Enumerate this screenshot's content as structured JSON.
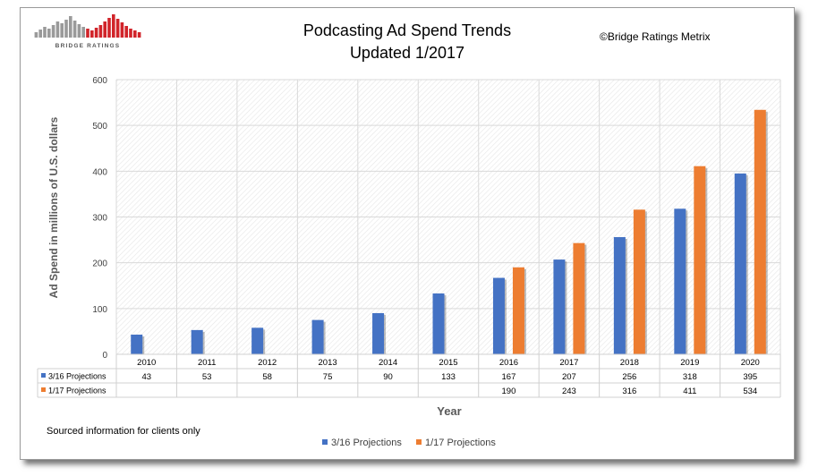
{
  "logo": {
    "text": "BRIDGE RATINGS"
  },
  "header": {
    "title_line1": "Podcasting Ad Spend Trends",
    "title_line2": "Updated 1/2017",
    "copyright": "©Bridge Ratings Metrix"
  },
  "footer": {
    "note": "Sourced information for clients only"
  },
  "colors": {
    "series1": "#4472c4",
    "series2": "#ed7d31",
    "grid": "#d9d9d9",
    "axis_text": "#595959"
  },
  "chart_data": {
    "type": "bar",
    "ylabel": "Ad Spend in millions of U.S. dollars",
    "xlabel": "Year",
    "ylim": [
      0,
      600
    ],
    "yticks": [
      "0",
      "100",
      "200",
      "300",
      "400",
      "500",
      "600"
    ],
    "grid": true,
    "legend_position": "bottom",
    "categories": [
      "2010",
      "2011",
      "2012",
      "2013",
      "2014",
      "2015",
      "2016",
      "2017",
      "2018",
      "2019",
      "2020"
    ],
    "series": [
      {
        "name": "3/16 Projections",
        "values": [
          43,
          53,
          58,
          75,
          90,
          133,
          167,
          207,
          256,
          318,
          395
        ]
      },
      {
        "name": "1/17 Projections",
        "values": [
          null,
          null,
          null,
          null,
          null,
          null,
          190,
          243,
          316,
          411,
          534
        ]
      }
    ]
  }
}
